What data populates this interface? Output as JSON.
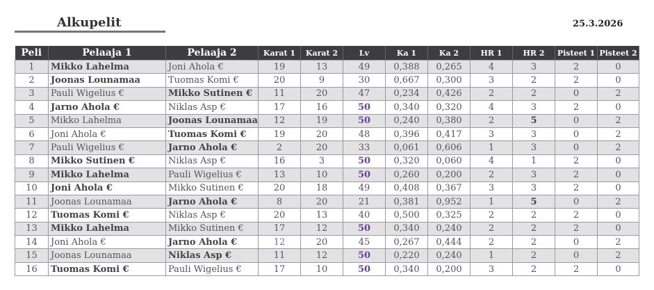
{
  "title": "Alkupelit",
  "date": "25.3.2026",
  "colors": {
    "header_bg": "#3d3d40",
    "stripe": "#e2e2e4",
    "highlight_lv": "#6a3d9a"
  },
  "columns": [
    "Peli",
    "Pelaaja 1",
    "Pelaaja 2",
    "Karat 1",
    "Karat 2",
    "Lv",
    "Ka 1",
    "Ka 2",
    "HR 1",
    "HR 2",
    "Pisteet 1",
    "Pisteet 2"
  ],
  "rows": [
    [
      "1",
      "Mikko Lahelma",
      "Joni Ahola €",
      "19",
      "13",
      "49",
      "0,388",
      "0,265",
      "4",
      "3",
      "2",
      "0"
    ],
    [
      "2",
      "Joonas Lounamaa",
      "Tuomas Komi €",
      "20",
      "9",
      "30",
      "0,667",
      "0,300",
      "3",
      "2",
      "2",
      "0"
    ],
    [
      "3",
      "Pauli Wigelius €",
      "Mikko Sutinen €",
      "11",
      "20",
      "47",
      "0,234",
      "0,426",
      "2",
      "2",
      "0",
      "2"
    ],
    [
      "4",
      "Jarno Ahola €",
      "Niklas Asp €",
      "17",
      "16",
      "50",
      "0,340",
      "0,320",
      "4",
      "3",
      "2",
      "0"
    ],
    [
      "5",
      "Mikko Lahelma",
      "Joonas Lounamaa",
      "12",
      "19",
      "50",
      "0,240",
      "0,380",
      "2",
      "5",
      "0",
      "2"
    ],
    [
      "6",
      "Joni Ahola €",
      "Tuomas Komi €",
      "19",
      "20",
      "48",
      "0,396",
      "0,417",
      "3",
      "3",
      "0",
      "2"
    ],
    [
      "7",
      "Pauli Wigelius €",
      "Jarno Ahola €",
      "2",
      "20",
      "33",
      "0,061",
      "0,606",
      "1",
      "3",
      "0",
      "2"
    ],
    [
      "8",
      "Mikko Sutinen €",
      "Niklas Asp €",
      "16",
      "3",
      "50",
      "0,320",
      "0,060",
      "4",
      "1",
      "2",
      "0"
    ],
    [
      "9",
      "Mikko Lahelma",
      "Pauli Wigelius €",
      "13",
      "10",
      "50",
      "0,260",
      "0,200",
      "2",
      "3",
      "2",
      "0"
    ],
    [
      "10",
      "Joni Ahola €",
      "Mikko Sutinen €",
      "20",
      "18",
      "49",
      "0,408",
      "0,367",
      "3",
      "3",
      "2",
      "0"
    ],
    [
      "11",
      "Joonas Lounamaa",
      "Jarno Ahola €",
      "8",
      "20",
      "21",
      "0,381",
      "0,952",
      "1",
      "5",
      "0",
      "2"
    ],
    [
      "12",
      "Tuomas Komi €",
      "Niklas Asp €",
      "20",
      "13",
      "40",
      "0,500",
      "0,325",
      "2",
      "2",
      "2",
      "0"
    ],
    [
      "13",
      "Mikko Lahelma",
      "Mikko Sutinen €",
      "17",
      "12",
      "50",
      "0,340",
      "0,240",
      "2",
      "2",
      "2",
      "0"
    ],
    [
      "14",
      "Joni Ahola €",
      "Jarno Ahola €",
      "12",
      "20",
      "45",
      "0,267",
      "0,444",
      "2",
      "2",
      "0",
      "2"
    ],
    [
      "15",
      "Joonas Lounamaa",
      "Niklas Asp €",
      "11",
      "12",
      "50",
      "0,220",
      "0,240",
      "1",
      "2",
      "0",
      "2"
    ],
    [
      "16",
      "Tuomas Komi €",
      "Pauli Wigelius €",
      "17",
      "10",
      "50",
      "0,340",
      "0,200",
      "3",
      "2",
      "2",
      "0"
    ]
  ]
}
